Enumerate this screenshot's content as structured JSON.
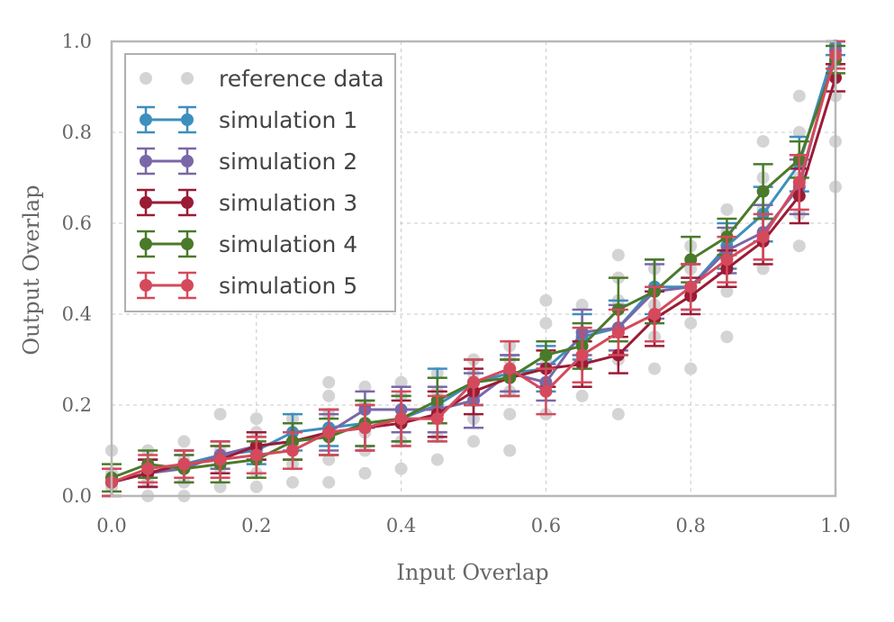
{
  "chart_data": {
    "type": "line",
    "xlabel": "Input Overlap",
    "ylabel": "Output Overlap",
    "xlim": [
      0,
      1
    ],
    "ylim": [
      0,
      1
    ],
    "xticks": [
      "0.0",
      "0.2",
      "0.4",
      "0.6",
      "0.8",
      "1.0"
    ],
    "yticks": [
      "0.0",
      "0.2",
      "0.4",
      "0.6",
      "0.8",
      "1.0"
    ],
    "grid": true,
    "legend_position": "top-left",
    "reference": {
      "name": "reference data",
      "color": "#d4d4d4",
      "points": [
        [
          0.0,
          0.02
        ],
        [
          0.0,
          0.05
        ],
        [
          0.0,
          0.1
        ],
        [
          0.05,
          0.0
        ],
        [
          0.05,
          0.03
        ],
        [
          0.05,
          0.07
        ],
        [
          0.05,
          0.1
        ],
        [
          0.1,
          0.0
        ],
        [
          0.1,
          0.03
        ],
        [
          0.1,
          0.08
        ],
        [
          0.1,
          0.12
        ],
        [
          0.15,
          0.02
        ],
        [
          0.15,
          0.06
        ],
        [
          0.15,
          0.1
        ],
        [
          0.15,
          0.18
        ],
        [
          0.2,
          0.02
        ],
        [
          0.2,
          0.05
        ],
        [
          0.2,
          0.1
        ],
        [
          0.2,
          0.14
        ],
        [
          0.2,
          0.17
        ],
        [
          0.25,
          0.03
        ],
        [
          0.25,
          0.07
        ],
        [
          0.25,
          0.11
        ],
        [
          0.25,
          0.17
        ],
        [
          0.3,
          0.03
        ],
        [
          0.3,
          0.08
        ],
        [
          0.3,
          0.13
        ],
        [
          0.3,
          0.18
        ],
        [
          0.3,
          0.22
        ],
        [
          0.3,
          0.25
        ],
        [
          0.35,
          0.05
        ],
        [
          0.35,
          0.1
        ],
        [
          0.35,
          0.14
        ],
        [
          0.35,
          0.2
        ],
        [
          0.35,
          0.24
        ],
        [
          0.4,
          0.06
        ],
        [
          0.4,
          0.12
        ],
        [
          0.4,
          0.17
        ],
        [
          0.4,
          0.22
        ],
        [
          0.4,
          0.25
        ],
        [
          0.45,
          0.08
        ],
        [
          0.45,
          0.13
        ],
        [
          0.45,
          0.18
        ],
        [
          0.45,
          0.23
        ],
        [
          0.45,
          0.27
        ],
        [
          0.5,
          0.12
        ],
        [
          0.5,
          0.17
        ],
        [
          0.5,
          0.22
        ],
        [
          0.5,
          0.27
        ],
        [
          0.5,
          0.3
        ],
        [
          0.55,
          0.1
        ],
        [
          0.55,
          0.18
        ],
        [
          0.55,
          0.23
        ],
        [
          0.55,
          0.3
        ],
        [
          0.55,
          0.33
        ],
        [
          0.6,
          0.18
        ],
        [
          0.6,
          0.24
        ],
        [
          0.6,
          0.3
        ],
        [
          0.6,
          0.38
        ],
        [
          0.6,
          0.43
        ],
        [
          0.65,
          0.22
        ],
        [
          0.65,
          0.3
        ],
        [
          0.65,
          0.36
        ],
        [
          0.65,
          0.42
        ],
        [
          0.7,
          0.18
        ],
        [
          0.7,
          0.3
        ],
        [
          0.7,
          0.36
        ],
        [
          0.7,
          0.43
        ],
        [
          0.7,
          0.48
        ],
        [
          0.7,
          0.53
        ],
        [
          0.75,
          0.28
        ],
        [
          0.75,
          0.35
        ],
        [
          0.75,
          0.42
        ],
        [
          0.75,
          0.5
        ],
        [
          0.8,
          0.28
        ],
        [
          0.8,
          0.38
        ],
        [
          0.8,
          0.45
        ],
        [
          0.8,
          0.5
        ],
        [
          0.8,
          0.55
        ],
        [
          0.85,
          0.35
        ],
        [
          0.85,
          0.45
        ],
        [
          0.85,
          0.5
        ],
        [
          0.85,
          0.58
        ],
        [
          0.85,
          0.63
        ],
        [
          0.9,
          0.5
        ],
        [
          0.9,
          0.57
        ],
        [
          0.9,
          0.63
        ],
        [
          0.9,
          0.7
        ],
        [
          0.9,
          0.78
        ],
        [
          0.95,
          0.55
        ],
        [
          0.95,
          0.62
        ],
        [
          0.95,
          0.7
        ],
        [
          0.95,
          0.8
        ],
        [
          0.95,
          0.88
        ],
        [
          1.0,
          0.68
        ],
        [
          1.0,
          0.78
        ],
        [
          1.0,
          0.88
        ],
        [
          1.0,
          0.95
        ]
      ]
    },
    "x": [
      0.0,
      0.05,
      0.1,
      0.15,
      0.2,
      0.25,
      0.3,
      0.35,
      0.4,
      0.45,
      0.5,
      0.55,
      0.6,
      0.65,
      0.7,
      0.75,
      0.8,
      0.85,
      0.9,
      0.95,
      1.0
    ],
    "series": [
      {
        "name": "simulation 1",
        "color": "#3d8fbd",
        "values": [
          0.03,
          0.05,
          0.07,
          0.09,
          0.1,
          0.14,
          0.15,
          0.16,
          0.17,
          0.2,
          0.25,
          0.27,
          0.28,
          0.35,
          0.37,
          0.46,
          0.46,
          0.55,
          0.62,
          0.73,
          0.99
        ],
        "errors": [
          0.03,
          0.03,
          0.03,
          0.03,
          0.03,
          0.04,
          0.04,
          0.05,
          0.05,
          0.08,
          0.05,
          0.04,
          0.05,
          0.05,
          0.06,
          0.06,
          0.05,
          0.05,
          0.06,
          0.06,
          0.02
        ]
      },
      {
        "name": "simulation 2",
        "color": "#7a67a8",
        "values": [
          0.03,
          0.05,
          0.06,
          0.09,
          0.11,
          0.12,
          0.14,
          0.19,
          0.19,
          0.19,
          0.21,
          0.27,
          0.25,
          0.36,
          0.37,
          0.45,
          0.46,
          0.54,
          0.58,
          0.68,
          0.98
        ],
        "errors": [
          0.03,
          0.03,
          0.03,
          0.03,
          0.03,
          0.04,
          0.04,
          0.04,
          0.05,
          0.05,
          0.06,
          0.04,
          0.04,
          0.05,
          0.05,
          0.06,
          0.05,
          0.05,
          0.06,
          0.06,
          0.03
        ]
      },
      {
        "name": "simulation 3",
        "color": "#9b1b35",
        "values": [
          0.03,
          0.05,
          0.07,
          0.08,
          0.11,
          0.12,
          0.14,
          0.15,
          0.16,
          0.18,
          0.23,
          0.26,
          0.28,
          0.29,
          0.31,
          0.39,
          0.44,
          0.5,
          0.56,
          0.66,
          0.92
        ],
        "errors": [
          0.03,
          0.03,
          0.03,
          0.03,
          0.03,
          0.04,
          0.05,
          0.05,
          0.05,
          0.05,
          0.05,
          0.04,
          0.04,
          0.05,
          0.04,
          0.06,
          0.04,
          0.04,
          0.05,
          0.06,
          0.03
        ]
      },
      {
        "name": "simulation 4",
        "color": "#4a7a2a",
        "values": [
          0.04,
          0.07,
          0.06,
          0.07,
          0.08,
          0.12,
          0.13,
          0.16,
          0.17,
          0.21,
          0.25,
          0.26,
          0.31,
          0.33,
          0.41,
          0.45,
          0.52,
          0.57,
          0.67,
          0.74,
          0.96
        ],
        "errors": [
          0.03,
          0.03,
          0.03,
          0.04,
          0.04,
          0.04,
          0.04,
          0.05,
          0.05,
          0.05,
          0.05,
          0.04,
          0.03,
          0.05,
          0.07,
          0.07,
          0.05,
          0.04,
          0.06,
          0.04,
          0.03
        ]
      },
      {
        "name": "simulation 5",
        "color": "#d44a5c",
        "values": [
          0.03,
          0.06,
          0.07,
          0.08,
          0.09,
          0.1,
          0.14,
          0.15,
          0.17,
          0.17,
          0.25,
          0.28,
          0.23,
          0.31,
          0.36,
          0.4,
          0.46,
          0.52,
          0.57,
          0.69,
          0.97
        ],
        "errors": [
          0.03,
          0.03,
          0.03,
          0.04,
          0.04,
          0.04,
          0.05,
          0.05,
          0.06,
          0.05,
          0.05,
          0.06,
          0.05,
          0.06,
          0.05,
          0.06,
          0.05,
          0.05,
          0.05,
          0.06,
          0.03
        ]
      }
    ]
  }
}
